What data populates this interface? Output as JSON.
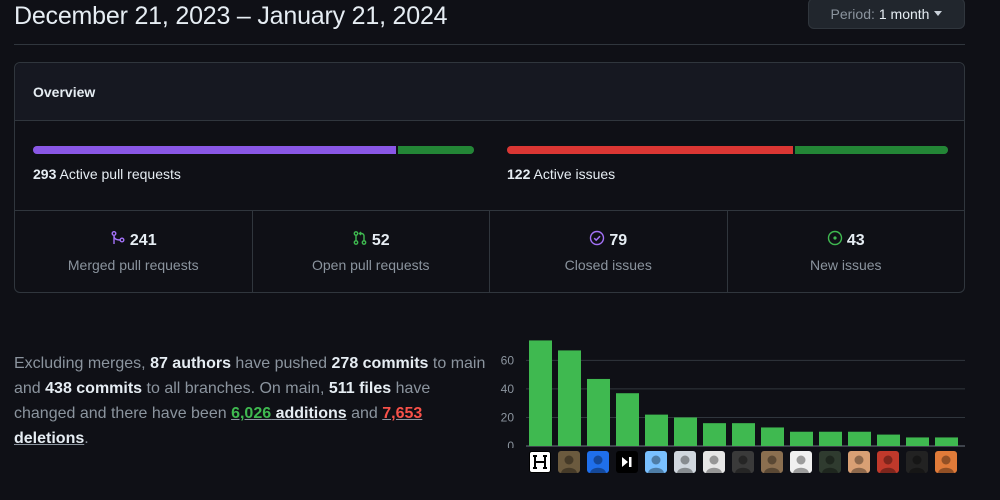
{
  "header": {
    "date_range": "December 21, 2023 – January 21, 2024",
    "period_prefix": "Period:",
    "period_value": "1 month"
  },
  "overview": {
    "title": "Overview",
    "pull_requests": {
      "count": "293",
      "label": "Active pull requests",
      "merged_fraction": 0.823,
      "merged_color": "#8957e5",
      "open_color": "#238636"
    },
    "issues": {
      "count": "122",
      "label": "Active issues",
      "closed_fraction": 0.648,
      "closed_color": "#da3633",
      "new_color": "#238636"
    },
    "stats": [
      {
        "icon": "git-merge-icon",
        "value": "241",
        "label": "Merged pull requests",
        "color": "#a371f7"
      },
      {
        "icon": "git-pull-request-icon",
        "value": "52",
        "label": "Open pull requests",
        "color": "#3fb950"
      },
      {
        "icon": "issue-closed-icon",
        "value": "79",
        "label": "Closed issues",
        "color": "#a371f7"
      },
      {
        "icon": "issue-opened-icon",
        "value": "43",
        "label": "New issues",
        "color": "#3fb950"
      }
    ]
  },
  "summary": {
    "t1": "Excluding merges, ",
    "authors": "87 authors",
    "t2": " have pushed ",
    "commits_main": "278 commits",
    "t3": " to main and ",
    "commits_all": "438 commits",
    "t4": " to all branches. On main, ",
    "files": "511 files",
    "t5": " have changed and there have been ",
    "additions_num": "6,026",
    "additions_word": " additions",
    "t6": " and ",
    "deletions_num": "7,653",
    "deletions_word": " deletions",
    "t7": "."
  },
  "chart_data": {
    "type": "bar",
    "ylim": [
      0,
      75
    ],
    "yticks": [
      0,
      20,
      40,
      60
    ],
    "values": [
      74,
      67,
      47,
      37,
      22,
      20,
      16,
      16,
      13,
      10,
      10,
      10,
      8,
      6,
      6
    ],
    "bar_color": "#3fb950",
    "grid": true
  }
}
